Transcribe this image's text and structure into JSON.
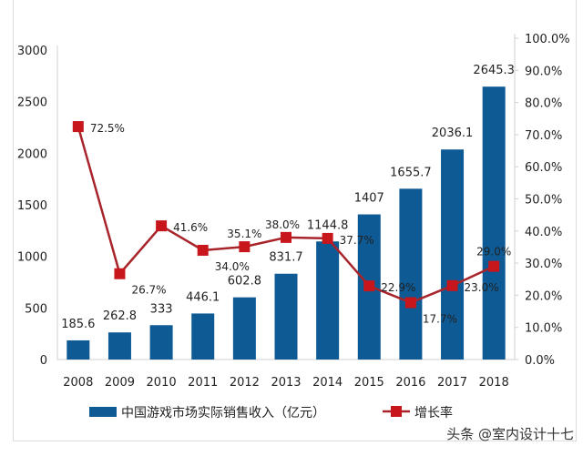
{
  "chart_data": {
    "type": "bar+line",
    "categories": [
      "2008",
      "2009",
      "2010",
      "2011",
      "2012",
      "2013",
      "2014",
      "2015",
      "2016",
      "2017",
      "2018"
    ],
    "series": [
      {
        "name": "中国游戏市场实际销售收入（亿元）",
        "type": "bar",
        "axis": "left",
        "color": "#0d5a94",
        "values": [
          185.6,
          262.8,
          333,
          446.1,
          602.8,
          831.7,
          1144.8,
          1407,
          1655.7,
          2036.1,
          2645.3
        ],
        "labels": [
          "185.6",
          "262.8",
          "333",
          "446.1",
          "602.8",
          "831.7",
          "1144.8",
          "1407",
          "1655.7",
          "2036.1",
          "2645.3"
        ]
      },
      {
        "name": "增长率",
        "type": "line",
        "axis": "right",
        "color": "#c8161d",
        "line_color": "#a8242b",
        "values": [
          72.5,
          26.7,
          41.6,
          34.0,
          35.1,
          38.0,
          37.7,
          22.9,
          17.7,
          23.0,
          29.0
        ],
        "labels": [
          "72.5%",
          "26.7%",
          "41.6%",
          "34.0%",
          "35.1%",
          "38.0%",
          "37.7%",
          "22.9%",
          "17.7%",
          "23.0%",
          "29.0%"
        ]
      }
    ],
    "y_left": {
      "range": [
        0,
        3000
      ],
      "ticks": [
        "0",
        "500",
        "1000",
        "1500",
        "2000",
        "2500",
        "3000"
      ]
    },
    "y_right": {
      "range": [
        0,
        100
      ],
      "ticks": [
        "0.0%",
        "10.0%",
        "20.0%",
        "30.0%",
        "40.0%",
        "50.0%",
        "60.0%",
        "70.0%",
        "80.0%",
        "90.0%",
        "100.0%"
      ]
    },
    "legend_position": "bottom",
    "grid": false
  },
  "watermark": "头条 @室内设计十七"
}
